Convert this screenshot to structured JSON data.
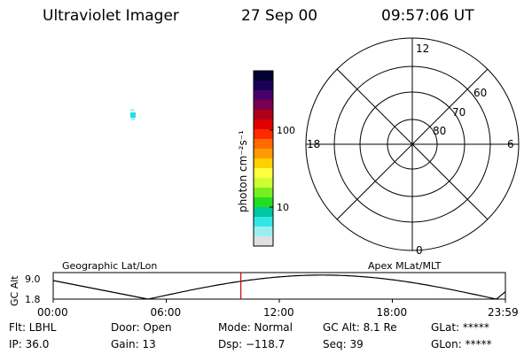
{
  "header": {
    "instrument": "Ultraviolet Imager",
    "date": "27 Sep 00",
    "time": "09:57:06 UT"
  },
  "colorbar": {
    "unit_label": "photon cm⁻²s⁻¹",
    "ticks": [
      "100",
      "10"
    ],
    "colors": [
      "#000033",
      "#1a0055",
      "#4a006a",
      "#7a0050",
      "#b0001a",
      "#e00000",
      "#ff2a00",
      "#ff6a00",
      "#ff9a00",
      "#ffd000",
      "#ffff40",
      "#ccff33",
      "#77ee22",
      "#22dd22",
      "#00c8a0",
      "#33e6e6",
      "#99eef0",
      "#e0e0e0"
    ]
  },
  "polar_plot": {
    "clock_labels": [
      "12",
      "6",
      "0",
      "18"
    ],
    "lat_labels": [
      "60",
      "70",
      "80"
    ]
  },
  "orbit_plot": {
    "y_axis_label": "GC Alt",
    "y_ticks": [
      "9.0",
      "1.8"
    ],
    "left_title": "Geographic Lat/Lon",
    "right_title": "Apex MLat/MLT",
    "x_ticks": [
      "00:00",
      "06:00",
      "12:00",
      "18:00",
      "23:59"
    ],
    "current_time_fraction": 0.415,
    "marker_color": "#cc0000"
  },
  "status": {
    "row1": [
      {
        "label": "Flt: LBHL"
      },
      {
        "label": "Door: Open"
      },
      {
        "label": "Mode: Normal"
      },
      {
        "label": "GC Alt: 8.1 Re"
      },
      {
        "label": "GLat: *****"
      }
    ],
    "row2": [
      {
        "label": "IP: 36.0"
      },
      {
        "label": "Gain: 13"
      },
      {
        "label": "Dsp: −118.7"
      },
      {
        "label": "Seq: 39"
      },
      {
        "label": "GLon: *****"
      }
    ]
  }
}
